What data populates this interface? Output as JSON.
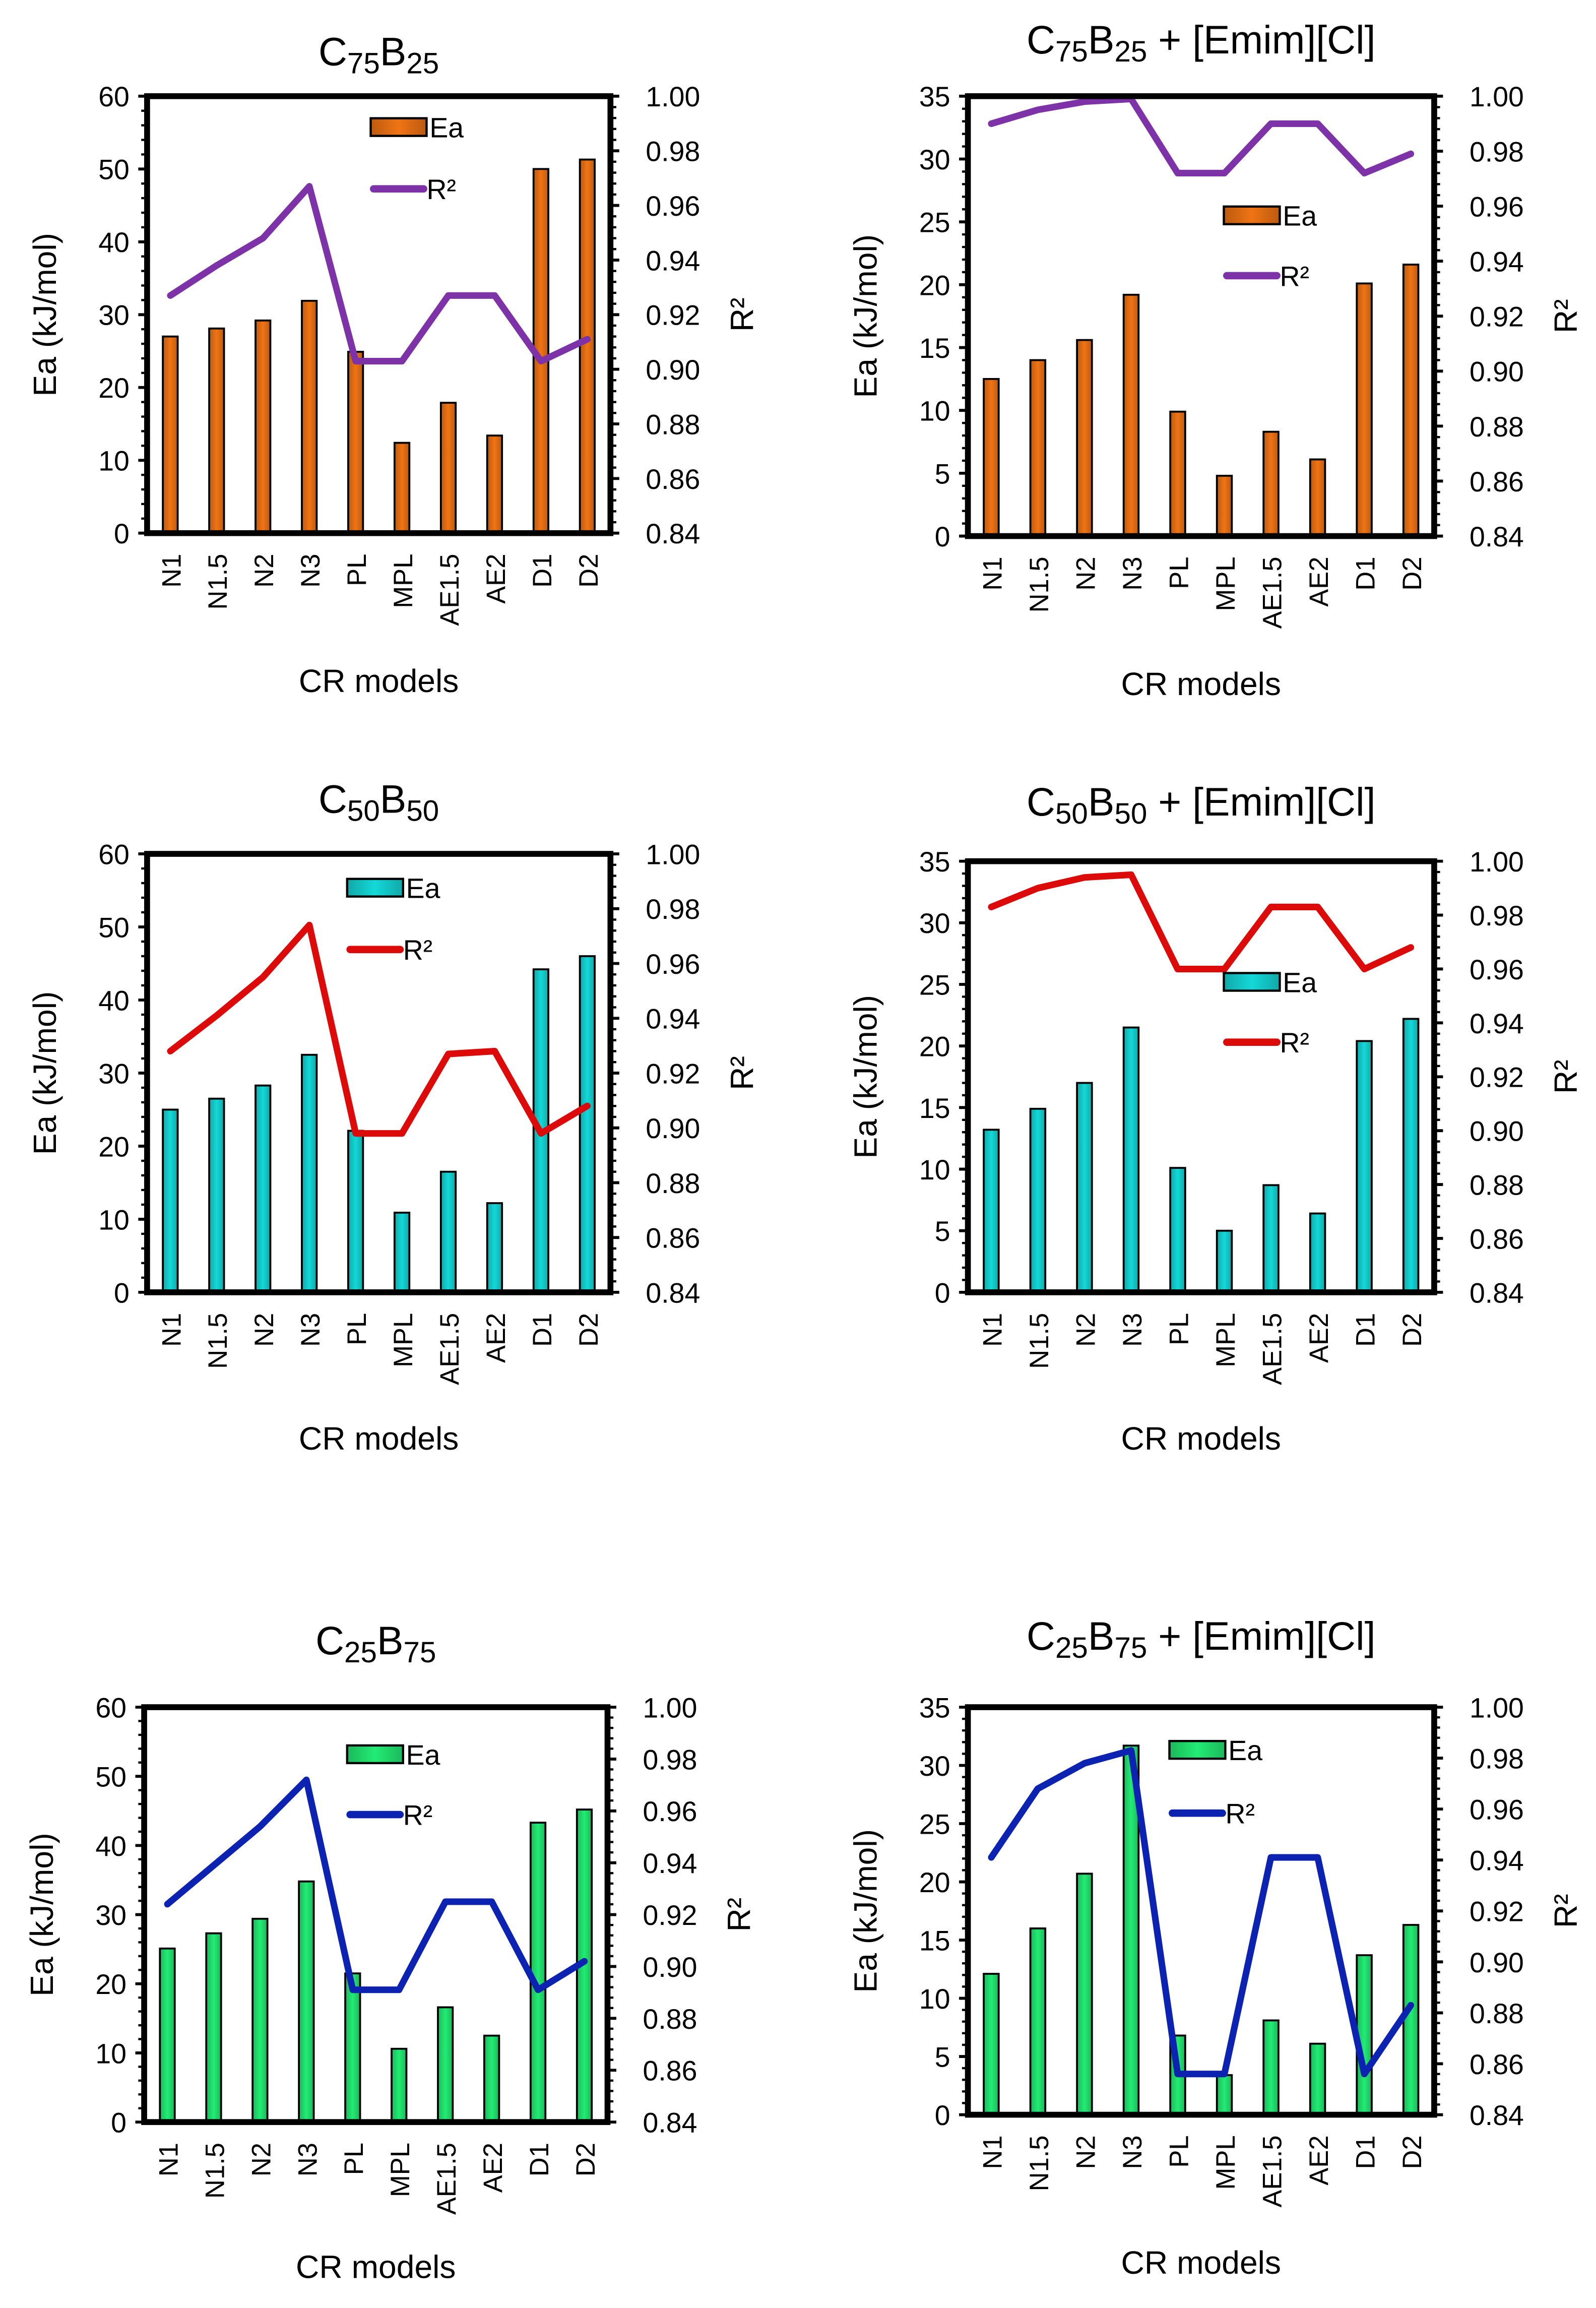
{
  "chart_data": [
    {
      "type": "bar+line",
      "title": "C75B25",
      "xlabel": "CR models",
      "ylabel": "Ea (kJ/mol)",
      "y2label": "R²",
      "categories": [
        "N1",
        "N1.5",
        "N2",
        "N3",
        "PL",
        "MPL",
        "AE1.5",
        "AE2",
        "D1",
        "D2"
      ],
      "ylim": [
        0,
        60
      ],
      "yticks": [
        0,
        10,
        20,
        30,
        40,
        50,
        60
      ],
      "y2lim": [
        0.84,
        1.0
      ],
      "y2ticks": [
        "0.84",
        "0.86",
        "0.88",
        "0.90",
        "0.92",
        "0.94",
        "0.96",
        "0.98",
        "1.00"
      ],
      "series": [
        {
          "name": "Ea",
          "kind": "bar",
          "color": "#f07414",
          "values": [
            27.0,
            28.1,
            29.2,
            31.9,
            24.9,
            12.4,
            17.9,
            13.4,
            50.0,
            51.3
          ]
        },
        {
          "name": "R²",
          "kind": "line",
          "axis": "right",
          "color": "#7d32a8",
          "values": [
            0.927,
            0.938,
            0.948,
            0.967,
            0.903,
            0.903,
            0.927,
            0.927,
            0.903,
            0.911
          ]
        }
      ],
      "legend": "top-center"
    },
    {
      "type": "bar+line",
      "title": "C75B25 + [Emim][Cl]",
      "xlabel": "CR models",
      "ylabel": "Ea (kJ/mol)",
      "y2label": "R²",
      "categories": [
        "N1",
        "N1.5",
        "N2",
        "N3",
        "PL",
        "MPL",
        "AE1.5",
        "AE2",
        "D1",
        "D2"
      ],
      "ylim": [
        0,
        35
      ],
      "yticks": [
        0,
        5,
        10,
        15,
        20,
        25,
        30,
        35
      ],
      "y2lim": [
        0.84,
        1.0
      ],
      "y2ticks": [
        "0.84",
        "0.86",
        "0.88",
        "0.90",
        "0.92",
        "0.94",
        "0.96",
        "0.98",
        "1.00"
      ],
      "series": [
        {
          "name": "Ea",
          "kind": "bar",
          "color": "#f07414",
          "values": [
            12.5,
            14.0,
            15.6,
            19.2,
            9.9,
            4.8,
            8.3,
            6.1,
            20.1,
            21.6
          ]
        },
        {
          "name": "R²",
          "kind": "line",
          "axis": "right",
          "color": "#7d32a8",
          "values": [
            0.99,
            0.995,
            0.998,
            0.999,
            0.972,
            0.972,
            0.99,
            0.99,
            0.972,
            0.979
          ]
        }
      ],
      "legend": "center-right"
    },
    {
      "type": "bar+line",
      "title": "C50B50",
      "xlabel": "CR models",
      "ylabel": "Ea (kJ/mol)",
      "y2label": "R²",
      "categories": [
        "N1",
        "N1.5",
        "N2",
        "N3",
        "PL",
        "MPL",
        "AE1.5",
        "AE2",
        "D1",
        "D2"
      ],
      "ylim": [
        0,
        60
      ],
      "yticks": [
        0,
        10,
        20,
        30,
        40,
        50,
        60
      ],
      "y2lim": [
        0.84,
        1.0
      ],
      "y2ticks": [
        "0.84",
        "0.86",
        "0.88",
        "0.90",
        "0.92",
        "0.94",
        "0.96",
        "0.98",
        "1.00"
      ],
      "series": [
        {
          "name": "Ea",
          "kind": "bar",
          "color": "#14d8d8",
          "values": [
            25.0,
            26.5,
            28.3,
            32.5,
            22.1,
            10.9,
            16.5,
            12.2,
            44.2,
            46.0
          ]
        },
        {
          "name": "R²",
          "kind": "line",
          "axis": "right",
          "color": "#dd0a0a",
          "values": [
            0.928,
            0.941,
            0.955,
            0.974,
            0.898,
            0.898,
            0.927,
            0.928,
            0.898,
            0.908
          ]
        }
      ],
      "legend": "top-center"
    },
    {
      "type": "bar+line",
      "title": "C50B50 + [Emim][Cl]",
      "xlabel": "CR models",
      "ylabel": "Ea (kJ/mol)",
      "y2label": "R²",
      "categories": [
        "N1",
        "N1.5",
        "N2",
        "N3",
        "PL",
        "MPL",
        "AE1.5",
        "AE2",
        "D1",
        "D2"
      ],
      "ylim": [
        0,
        35
      ],
      "yticks": [
        0,
        5,
        10,
        15,
        20,
        25,
        30,
        35
      ],
      "y2lim": [
        0.84,
        1.0
      ],
      "y2ticks": [
        "0.84",
        "0.86",
        "0.88",
        "0.90",
        "0.92",
        "0.94",
        "0.96",
        "0.98",
        "1.00"
      ],
      "series": [
        {
          "name": "Ea",
          "kind": "bar",
          "color": "#14d8d8",
          "values": [
            13.2,
            14.9,
            17.0,
            21.5,
            10.1,
            5.0,
            8.7,
            6.4,
            20.4,
            22.2
          ]
        },
        {
          "name": "R²",
          "kind": "line",
          "axis": "right",
          "color": "#dd0a0a",
          "values": [
            0.983,
            0.99,
            0.994,
            0.995,
            0.96,
            0.96,
            0.983,
            0.983,
            0.96,
            0.968
          ]
        }
      ],
      "legend": "center-right"
    },
    {
      "type": "bar+line",
      "title": "C25B75",
      "xlabel": "CR models",
      "ylabel": "Ea (kJ/mol)",
      "y2label": "R²",
      "categories": [
        "N1",
        "N1.5",
        "N2",
        "N3",
        "PL",
        "MPL",
        "AE1.5",
        "AE2",
        "D1",
        "D2"
      ],
      "ylim": [
        0,
        60
      ],
      "yticks": [
        0,
        10,
        20,
        30,
        40,
        50,
        60
      ],
      "y2lim": [
        0.84,
        1.0
      ],
      "y2ticks": [
        "0.84",
        "0.86",
        "0.88",
        "0.90",
        "0.92",
        "0.94",
        "0.96",
        "0.98",
        "1.00"
      ],
      "series": [
        {
          "name": "Ea",
          "kind": "bar",
          "color": "#22ec74",
          "values": [
            25.1,
            27.3,
            29.4,
            34.8,
            21.5,
            10.6,
            16.6,
            12.5,
            43.3,
            45.2
          ]
        },
        {
          "name": "R²",
          "kind": "line",
          "axis": "right",
          "color": "#0c22b0",
          "values": [
            0.924,
            0.939,
            0.954,
            0.972,
            0.891,
            0.891,
            0.925,
            0.925,
            0.891,
            0.902
          ]
        }
      ],
      "legend": "top-center"
    },
    {
      "type": "bar+line",
      "title": "C25B75 + [Emim][Cl]",
      "xlabel": "CR models",
      "ylabel": "Ea (kJ/mol)",
      "y2label": "R²",
      "categories": [
        "N1",
        "N1.5",
        "N2",
        "N3",
        "PL",
        "MPL",
        "AE1.5",
        "AE2",
        "D1",
        "D2"
      ],
      "ylim": [
        0,
        35
      ],
      "yticks": [
        0,
        5,
        10,
        15,
        20,
        25,
        30,
        35
      ],
      "y2lim": [
        0.84,
        1.0
      ],
      "y2ticks": [
        "0.84",
        "0.86",
        "0.88",
        "0.90",
        "0.92",
        "0.94",
        "0.96",
        "0.98",
        "1.00"
      ],
      "series": [
        {
          "name": "Ea",
          "kind": "bar",
          "color": "#22ec74",
          "values": [
            12.1,
            16.0,
            20.7,
            31.7,
            6.8,
            3.4,
            8.1,
            6.1,
            13.7,
            16.3
          ]
        },
        {
          "name": "R²",
          "kind": "line",
          "axis": "right",
          "color": "#0c22b0",
          "values": [
            0.941,
            0.968,
            0.978,
            0.983,
            0.856,
            0.856,
            0.941,
            0.941,
            0.856,
            0.883
          ]
        }
      ],
      "legend": "top-center"
    }
  ]
}
